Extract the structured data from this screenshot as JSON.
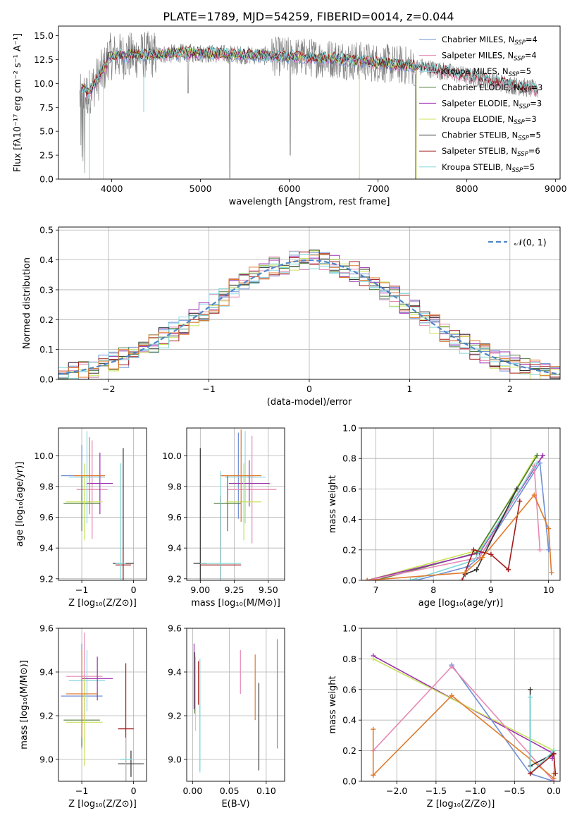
{
  "figure": {
    "title": "PLATE=1789, MJD=54259, FIBERID=0014, z=0.044"
  },
  "colors": {
    "chabrier_miles": "#6f8fd6",
    "salpeter_miles": "#e58ab5",
    "kroupa_miles": "#8fd8e6",
    "chabrier_elodie": "#4f7a3a",
    "salpeter_elodie": "#9b2fb0",
    "kroupa_elodie": "#c9e35a",
    "chabrier_stelib": "#333333",
    "salpeter_stelib": "#a31b1b",
    "kroupa_stelib": "#7dd6d6",
    "data": "#808080",
    "gaussian": "#4f86c6",
    "orange": "#e07a2c"
  },
  "chart_data": [
    {
      "id": "spectrum",
      "type": "line",
      "xlabel": "wavelength [Angstrom, rest frame]",
      "ylabel": "Flux [fλ10⁻¹⁷ erg cm⁻² s⁻¹ A⁻¹]",
      "xlim": [
        3400,
        9050
      ],
      "ylim": [
        0,
        16
      ],
      "xticks": [
        4000,
        5000,
        6000,
        7000,
        8000,
        9000
      ],
      "yticks": [
        0.0,
        2.5,
        5.0,
        7.5,
        10.0,
        12.5,
        15.0
      ],
      "grid": false,
      "legend_position": "top-right",
      "series": [
        {
          "key": "chabrier_miles",
          "name": "Chabrier MILES, N",
          "sub": "SSP",
          "suffix": "=4"
        },
        {
          "key": "salpeter_miles",
          "name": "Salpeter MILES, N",
          "sub": "SSP",
          "suffix": "=4"
        },
        {
          "key": "kroupa_miles",
          "name": "Kroupa MILES, N",
          "sub": "SSP",
          "suffix": "=5"
        },
        {
          "key": "chabrier_elodie",
          "name": "Chabrier ELODIE, N",
          "sub": "SSP",
          "suffix": "=3"
        },
        {
          "key": "salpeter_elodie",
          "name": "Salpeter ELODIE, N",
          "sub": "SSP",
          "suffix": "=3"
        },
        {
          "key": "kroupa_elodie",
          "name": "Kroupa ELODIE, N",
          "sub": "SSP",
          "suffix": "=3"
        },
        {
          "key": "chabrier_stelib",
          "name": "Chabrier STELIB, N",
          "sub": "SSP",
          "suffix": "=5"
        },
        {
          "key": "salpeter_stelib",
          "name": "Salpeter STELIB, N",
          "sub": "SSP",
          "suffix": "=6"
        },
        {
          "key": "kroupa_stelib",
          "name": "Kroupa STELIB, N",
          "sub": "SSP",
          "suffix": "=5"
        }
      ]
    },
    {
      "id": "residuals",
      "type": "line",
      "xlabel": "(data-model)/error",
      "ylabel": "Normed distribution",
      "xlim": [
        -2.5,
        2.5
      ],
      "ylim": [
        0,
        0.51
      ],
      "xticks": [
        -2,
        -1,
        0,
        1,
        2
      ],
      "yticks": [
        0.0,
        0.1,
        0.2,
        0.3,
        0.4,
        0.5
      ],
      "grid": true,
      "legend": "𝒩(0, 1)"
    },
    {
      "id": "age_vs_Z",
      "type": "scatter",
      "xlabel": "Z [log₁₀(Z/Z⊙)]",
      "ylabel": "age  [log₁₀(age/yr)]",
      "xlim": [
        -1.45,
        0.25
      ],
      "ylim": [
        9.19,
        10.18
      ],
      "xticks": [
        -1,
        0
      ],
      "yticks": [
        9.2,
        9.4,
        9.6,
        9.8,
        10.0
      ],
      "grid": true,
      "points": [
        {
          "key": "chabrier_miles",
          "x": -1.0,
          "y": 9.87,
          "xerr": 0.4,
          "yerr": 0.2
        },
        {
          "key": "salpeter_miles",
          "x": -0.8,
          "y": 9.78,
          "xerr": 0.3,
          "yerr": 0.32
        },
        {
          "key": "kroupa_miles",
          "x": -0.9,
          "y": 9.86,
          "xerr": 0.35,
          "yerr": 0.3
        },
        {
          "key": "chabrier_elodie",
          "x": -1.0,
          "y": 9.69,
          "xerr": 0.35,
          "yerr": 0.18
        },
        {
          "key": "salpeter_elodie",
          "x": -0.65,
          "y": 9.82,
          "xerr": 0.25,
          "yerr": 0.2
        },
        {
          "key": "kroupa_elodie",
          "x": -0.95,
          "y": 9.7,
          "xerr": 0.35,
          "yerr": 0.25
        },
        {
          "key": "chabrier_stelib",
          "x": -0.2,
          "y": 9.3,
          "xerr": 0.2,
          "yerr": 0.75
        },
        {
          "key": "salpeter_stelib",
          "x": -0.2,
          "y": 9.29,
          "xerr": 0.15,
          "yerr": 0.1
        },
        {
          "key": "kroupa_stelib",
          "x": -0.25,
          "y": 9.3,
          "xerr": 0.1,
          "yerr": 0.65
        },
        {
          "key": "orange",
          "x": -0.85,
          "y": 9.87,
          "xerr": 0.3,
          "yerr": 0.25
        }
      ]
    },
    {
      "id": "age_vs_mass",
      "type": "scatter",
      "xlabel": "mass [log₁₀(M/M⊙)]",
      "ylabel": "",
      "xlim": [
        8.9,
        9.62
      ],
      "ylim": [
        9.19,
        10.18
      ],
      "xticks": [
        9.0,
        9.25,
        9.5
      ],
      "yticks": [
        9.2,
        9.4,
        9.6,
        9.8,
        10.0
      ],
      "grid": true,
      "points": [
        {
          "key": "chabrier_miles",
          "x": 9.28,
          "y": 9.87,
          "xerr": 0.12,
          "yerr": 0.28
        },
        {
          "key": "salpeter_miles",
          "x": 9.38,
          "y": 9.78,
          "xerr": 0.18,
          "yerr": 0.35
        },
        {
          "key": "kroupa_miles",
          "x": 9.33,
          "y": 9.86,
          "xerr": 0.15,
          "yerr": 0.3
        },
        {
          "key": "chabrier_elodie",
          "x": 9.2,
          "y": 9.69,
          "xerr": 0.1,
          "yerr": 0.18
        },
        {
          "key": "salpeter_elodie",
          "x": 9.36,
          "y": 9.82,
          "xerr": 0.15,
          "yerr": 0.15
        },
        {
          "key": "kroupa_elodie",
          "x": 9.32,
          "y": 9.7,
          "xerr": 0.13,
          "yerr": 0.25
        },
        {
          "key": "chabrier_stelib",
          "x": 9.0,
          "y": 9.3,
          "xerr": 0.05,
          "yerr": 0.75
        },
        {
          "key": "salpeter_stelib",
          "x": 9.15,
          "y": 9.29,
          "xerr": 0.15,
          "yerr": 0.45
        },
        {
          "key": "kroupa_stelib",
          "x": 9.15,
          "y": 9.3,
          "xerr": 0.15,
          "yerr": 0.6
        },
        {
          "key": "orange",
          "x": 9.3,
          "y": 9.87,
          "xerr": 0.15,
          "yerr": 0.3
        }
      ]
    },
    {
      "id": "massweight_vs_age",
      "type": "line",
      "xlabel": "age  [log₁₀(age/yr)]",
      "ylabel": "mass weight",
      "xlim": [
        6.75,
        10.2
      ],
      "ylim": [
        0,
        1.0
      ],
      "xticks": [
        7,
        8,
        9,
        10
      ],
      "yticks": [
        0.0,
        0.2,
        0.4,
        0.6,
        0.8,
        1.0
      ],
      "grid": true,
      "series": [
        {
          "key": "kroupa_elodie",
          "x": [
            6.85,
            8.8,
            9.75
          ],
          "y": [
            0.0,
            0.2,
            0.8
          ]
        },
        {
          "key": "chabrier_elodie",
          "x": [
            7.0,
            8.75,
            9.45,
            9.8
          ],
          "y": [
            0.0,
            0.18,
            0.6,
            0.82
          ]
        },
        {
          "key": "salpeter_elodie",
          "x": [
            6.85,
            8.8,
            9.9
          ],
          "y": [
            0.0,
            0.18,
            0.82
          ]
        },
        {
          "key": "chabrier_miles",
          "x": [
            7.7,
            8.6,
            8.8,
            9.85,
            10.0
          ],
          "y": [
            0.0,
            0.09,
            0.15,
            0.77,
            0.2
          ]
        },
        {
          "key": "salpeter_miles",
          "x": [
            6.85,
            8.8,
            9.75,
            9.85
          ],
          "y": [
            0.0,
            0.15,
            0.75,
            0.2
          ]
        },
        {
          "key": "kroupa_stelib",
          "x": [
            7.6,
            8.7,
            9.8
          ],
          "y": [
            0.0,
            0.13,
            0.77
          ]
        },
        {
          "key": "chabrier_stelib",
          "x": [
            8.55,
            8.75,
            9.45
          ],
          "y": [
            0.04,
            0.07,
            0.6
          ]
        },
        {
          "key": "salpeter_stelib",
          "x": [
            8.5,
            8.7,
            9.0,
            9.3,
            9.5
          ],
          "y": [
            0.0,
            0.2,
            0.17,
            0.07,
            0.52
          ]
        },
        {
          "key": "orange",
          "x": [
            6.85,
            8.55,
            8.85,
            9.75,
            10.0,
            10.05
          ],
          "y": [
            0.0,
            0.05,
            0.15,
            0.56,
            0.34,
            0.05
          ]
        }
      ]
    },
    {
      "id": "mass_vs_Z",
      "type": "scatter",
      "xlabel": "Z [log₁₀(Z/Z⊙)]",
      "ylabel": "mass [log₁₀(M/M⊙)]",
      "xlim": [
        -1.45,
        0.25
      ],
      "ylim": [
        8.9,
        9.6
      ],
      "xticks": [
        -1,
        0
      ],
      "yticks": [
        9.0,
        9.2,
        9.4,
        9.6
      ],
      "grid": true,
      "points": [
        {
          "key": "chabrier_miles",
          "x": -1.0,
          "y": 9.29,
          "xerr": 0.4,
          "yerr": 0.24
        },
        {
          "key": "salpeter_miles",
          "x": -0.95,
          "y": 9.38,
          "xerr": 0.35,
          "yerr": 0.2
        },
        {
          "key": "kroupa_miles",
          "x": -0.9,
          "y": 9.36,
          "xerr": 0.35,
          "yerr": 0.14
        },
        {
          "key": "chabrier_elodie",
          "x": -1.0,
          "y": 9.18,
          "xerr": 0.35,
          "yerr": 0.12
        },
        {
          "key": "salpeter_elodie",
          "x": -0.7,
          "y": 9.37,
          "xerr": 0.3,
          "yerr": 0.1
        },
        {
          "key": "kroupa_elodie",
          "x": -0.95,
          "y": 9.17,
          "xerr": 0.35,
          "yerr": 0.2
        },
        {
          "key": "chabrier_stelib",
          "x": -0.05,
          "y": 8.98,
          "xerr": 0.25,
          "yerr": 0.06
        },
        {
          "key": "salpeter_stelib",
          "x": -0.15,
          "y": 9.14,
          "xerr": 0.15,
          "yerr": 0.3
        },
        {
          "key": "kroupa_stelib",
          "x": -0.15,
          "y": 9.0,
          "xerr": 0.12,
          "yerr": 0.1
        },
        {
          "key": "orange",
          "x": -1.0,
          "y": 9.3,
          "xerr": 0.3,
          "yerr": 0.2
        }
      ]
    },
    {
      "id": "mass_vs_ebv",
      "type": "scatter",
      "xlabel": "E(B-V)",
      "ylabel": "",
      "xlim": [
        -0.008,
        0.125
      ],
      "ylim": [
        8.9,
        9.6
      ],
      "xticks": [
        0.0,
        0.05,
        0.1
      ],
      "yticks": [
        9.0,
        9.2,
        9.4,
        9.6
      ],
      "grid": true,
      "points": [
        {
          "key": "chabrier_miles",
          "x": 0.115,
          "y": 9.3,
          "yerr": 0.25
        },
        {
          "key": "salpeter_miles",
          "x": 0.065,
          "y": 9.4,
          "yerr": 0.1
        },
        {
          "key": "kroupa_miles",
          "x": 0.01,
          "y": 9.2,
          "yerr": 0.26
        },
        {
          "key": "chabrier_elodie",
          "x": 0.003,
          "y": 9.35,
          "yerr": 0.14
        },
        {
          "key": "salpeter_elodie",
          "x": 0.002,
          "y": 9.38,
          "yerr": 0.15
        },
        {
          "key": "kroupa_elodie",
          "x": 0.004,
          "y": 9.3,
          "yerr": 0.17
        },
        {
          "key": "chabrier_stelib",
          "x": 0.09,
          "y": 9.15,
          "yerr": 0.2
        },
        {
          "key": "salpeter_stelib",
          "x": 0.008,
          "y": 9.35,
          "yerr": 0.1
        },
        {
          "key": "kroupa_stelib",
          "x": 0.01,
          "y": 9.1,
          "yerr": 0.15
        },
        {
          "key": "orange",
          "x": 0.085,
          "y": 9.33,
          "yerr": 0.15
        }
      ]
    },
    {
      "id": "massweight_vs_Z",
      "type": "line",
      "xlabel": "Z [log₁₀(Z/Z⊙)]",
      "ylabel": "mass weight",
      "xlim": [
        -2.45,
        0.08
      ],
      "ylim": [
        0,
        1.0
      ],
      "xticks": [
        -2.0,
        -1.5,
        -1.0,
        -0.5,
        0.0
      ],
      "yticks": [
        0.0,
        0.2,
        0.4,
        0.6,
        0.8,
        1.0
      ],
      "grid": true,
      "series": [
        {
          "key": "salpeter_elodie",
          "x": [
            -2.3,
            0.0,
            -0.02
          ],
          "y": [
            0.82,
            0.18,
            0.15
          ]
        },
        {
          "key": "kroupa_elodie",
          "x": [
            -2.3,
            0.0
          ],
          "y": [
            0.8,
            0.2
          ]
        },
        {
          "key": "chabrier_miles",
          "x": [
            -1.3,
            -0.3,
            0.0
          ],
          "y": [
            0.76,
            0.05,
            0.0
          ]
        },
        {
          "key": "salpeter_miles",
          "x": [
            -2.3,
            -1.3,
            0.0
          ],
          "y": [
            0.2,
            0.75,
            0.0
          ]
        },
        {
          "key": "orange",
          "x": [
            -2.3,
            -2.3,
            -2.3,
            -1.3,
            0.0,
            0.0
          ],
          "y": [
            0.34,
            0.04,
            0.04,
            0.56,
            0.02,
            0.05
          ]
        },
        {
          "key": "chabrier_stelib",
          "x": [
            -0.3,
            -0.3,
            0.0
          ],
          "y": [
            0.6,
            0.1,
            0.18
          ]
        },
        {
          "key": "kroupa_stelib",
          "x": [
            -0.3,
            -0.3,
            0.0
          ],
          "y": [
            0.55,
            0.05,
            0.2
          ]
        },
        {
          "key": "salpeter_stelib",
          "x": [
            -0.3,
            0.0,
            0.02
          ],
          "y": [
            0.05,
            0.18,
            0.05
          ]
        }
      ]
    }
  ]
}
